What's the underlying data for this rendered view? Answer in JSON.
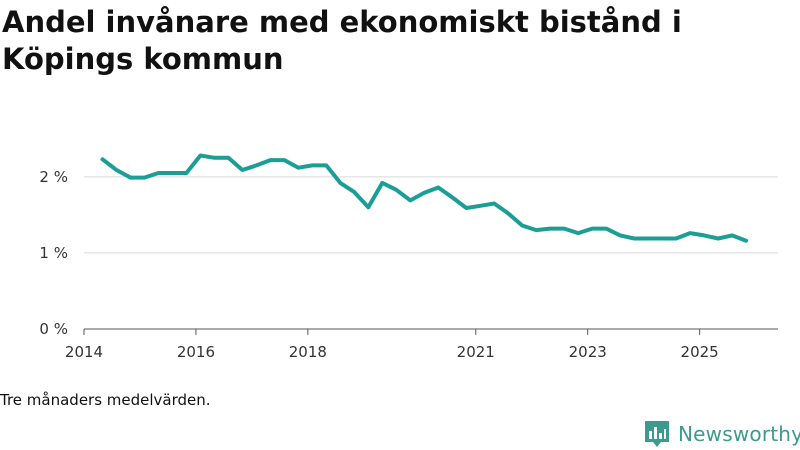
{
  "chart_data": {
    "type": "line",
    "title": "Andel invånare med ekonomiskt bistånd i Köpings kommun",
    "xlabel": "",
    "ylabel": "",
    "ylim": [
      0,
      2.55
    ],
    "yticks": [
      0,
      1,
      2
    ],
    "ytick_labels": [
      "0 %",
      "1 %",
      "2 %"
    ],
    "xlim": [
      2014.0,
      2026.4
    ],
    "xticks": [
      2014.0,
      2016.0,
      2018.0,
      2021.0,
      2023.0,
      2025.0
    ],
    "xtick_labels": [
      "2014",
      "2016",
      "2018",
      "2021",
      "2023",
      "2025"
    ],
    "grid": true,
    "line_color": "#1a9e96",
    "series": [
      {
        "name": "Andel invånare med ekonomiskt bistånd",
        "x": [
          2014.33,
          2014.58,
          2014.83,
          2015.08,
          2015.33,
          2015.58,
          2015.83,
          2016.08,
          2016.33,
          2016.58,
          2016.83,
          2017.08,
          2017.33,
          2017.58,
          2017.83,
          2018.08,
          2018.33,
          2018.58,
          2018.83,
          2019.08,
          2019.33,
          2019.58,
          2019.83,
          2020.08,
          2020.33,
          2020.58,
          2020.83,
          2021.08,
          2021.33,
          2021.58,
          2021.83,
          2022.08,
          2022.33,
          2022.58,
          2022.83,
          2023.08,
          2023.33,
          2023.58,
          2023.83,
          2024.08,
          2024.33,
          2024.58,
          2024.83,
          2025.08,
          2025.33,
          2025.58,
          2025.83
        ],
        "values": [
          2.23,
          2.09,
          1.99,
          1.99,
          2.05,
          2.05,
          2.05,
          2.28,
          2.25,
          2.25,
          2.09,
          2.15,
          2.22,
          2.22,
          2.12,
          2.15,
          2.15,
          1.92,
          1.8,
          1.6,
          1.92,
          1.83,
          1.69,
          1.79,
          1.86,
          1.73,
          1.59,
          1.62,
          1.65,
          1.52,
          1.36,
          1.3,
          1.32,
          1.32,
          1.26,
          1.32,
          1.32,
          1.23,
          1.19,
          1.19,
          1.19,
          1.19,
          1.26,
          1.23,
          1.19,
          1.23,
          1.16
        ]
      }
    ]
  },
  "footer": {
    "note": "Tre månaders medelvärden.",
    "brand": "Newsworthy"
  },
  "colors": {
    "line": "#1a9e96",
    "brand": "#3c9a8f",
    "grid": "#d9d9d9"
  }
}
